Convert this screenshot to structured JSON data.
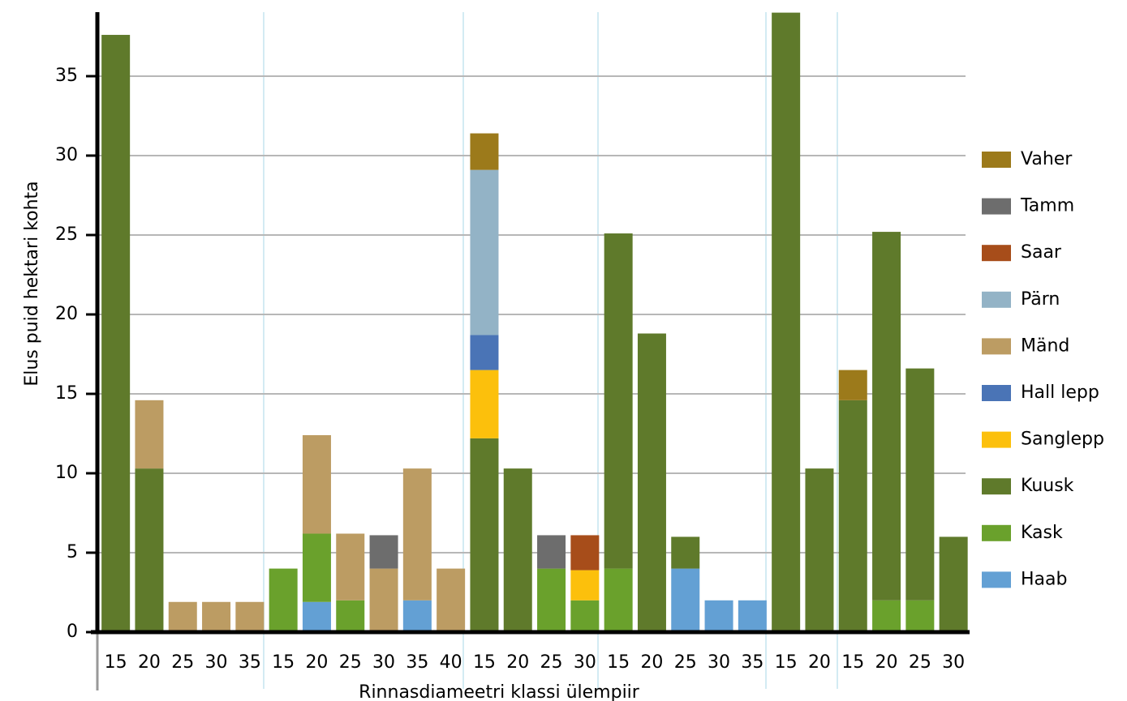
{
  "chart_data": {
    "type": "stacked_bar",
    "x_label": "Rinnasdiameetri klassi ülempiir",
    "y_label": "Elus puid hektari kohta",
    "categories": [
      "15",
      "20",
      "25",
      "30",
      "35",
      "15",
      "20",
      "25",
      "30",
      "35",
      "40",
      "15",
      "20",
      "25",
      "30",
      "15",
      "20",
      "25",
      "30",
      "35",
      "15",
      "20",
      "15",
      "20",
      "25",
      "30"
    ],
    "ylim": [
      0,
      39
    ],
    "yticks": [
      0,
      5,
      10,
      15,
      20,
      25,
      30,
      35
    ],
    "grid": true,
    "legend": "right",
    "series": [
      {
        "name": "Haab",
        "color": "#63a0d4",
        "values": [
          0,
          0,
          0,
          0,
          0,
          0,
          1.9,
          0,
          0,
          2,
          0,
          0,
          0,
          0,
          0,
          0,
          0,
          4,
          2,
          2,
          0,
          0,
          0,
          0,
          0,
          0
        ]
      },
      {
        "name": "Kask",
        "color": "#6aa12c",
        "values": [
          0,
          0,
          0,
          0,
          0,
          4,
          4.3,
          2,
          0,
          0,
          0,
          0,
          0,
          4,
          2,
          4,
          0,
          0,
          0,
          0,
          0,
          0,
          0,
          2,
          2,
          0
        ]
      },
      {
        "name": "Kuusk",
        "color": "#5f7a2b",
        "values": [
          37.6,
          10.3,
          0,
          0,
          0,
          0,
          0,
          0,
          0,
          0,
          0,
          12.2,
          10.3,
          0,
          0,
          21.1,
          18.8,
          2,
          0,
          0,
          39,
          10.3,
          14.6,
          23.2,
          14.6,
          6
        ]
      },
      {
        "name": "Sanglepp",
        "color": "#fcc00c",
        "values": [
          0,
          0,
          0,
          0,
          0,
          0,
          0,
          0,
          0,
          0,
          0,
          4.3,
          0,
          0,
          1.9,
          0,
          0,
          0,
          0,
          0,
          0,
          0,
          0,
          0,
          0,
          0
        ]
      },
      {
        "name": "Hall lepp",
        "color": "#4a74b6",
        "values": [
          0,
          0,
          0,
          0,
          0,
          0,
          0,
          0,
          0,
          0,
          0,
          2.2,
          0,
          0,
          0,
          0,
          0,
          0,
          0,
          0,
          0,
          0,
          0,
          0,
          0,
          0
        ]
      },
      {
        "name": "Mänd",
        "color": "#bc9c63",
        "values": [
          0,
          4.3,
          1.9,
          1.9,
          1.9,
          0,
          6.2,
          4.2,
          4,
          8.3,
          4,
          0,
          0,
          0,
          0,
          0,
          0,
          0,
          0,
          0,
          0,
          0,
          0,
          0,
          0,
          0
        ]
      },
      {
        "name": "Pärn",
        "color": "#93b3c6",
        "values": [
          0,
          0,
          0,
          0,
          0,
          0,
          0,
          0,
          0,
          0,
          0,
          10.4,
          0,
          0,
          0,
          0,
          0,
          0,
          0,
          0,
          0,
          0,
          0,
          0,
          0,
          0
        ]
      },
      {
        "name": "Saar",
        "color": "#a74d1a",
        "values": [
          0,
          0,
          0,
          0,
          0,
          0,
          0,
          0,
          0,
          0,
          0,
          0,
          0,
          0,
          2.2,
          0,
          0,
          0,
          0,
          0,
          0,
          0,
          0,
          0,
          0,
          0
        ]
      },
      {
        "name": "Tamm",
        "color": "#6d6d6d",
        "values": [
          0,
          0,
          0,
          0,
          0,
          0,
          0,
          0,
          2.1,
          0,
          0,
          0,
          0,
          2.1,
          0,
          0,
          0,
          0,
          0,
          0,
          0,
          0,
          0,
          0,
          0,
          0
        ]
      },
      {
        "name": "Vaher",
        "color": "#9c7a1b",
        "values": [
          0,
          0,
          0,
          0,
          0,
          0,
          0,
          0,
          0,
          0,
          0,
          2.3,
          0,
          0,
          0,
          0,
          0,
          0,
          0,
          0,
          0,
          0,
          1.9,
          0,
          0,
          0
        ]
      }
    ]
  }
}
